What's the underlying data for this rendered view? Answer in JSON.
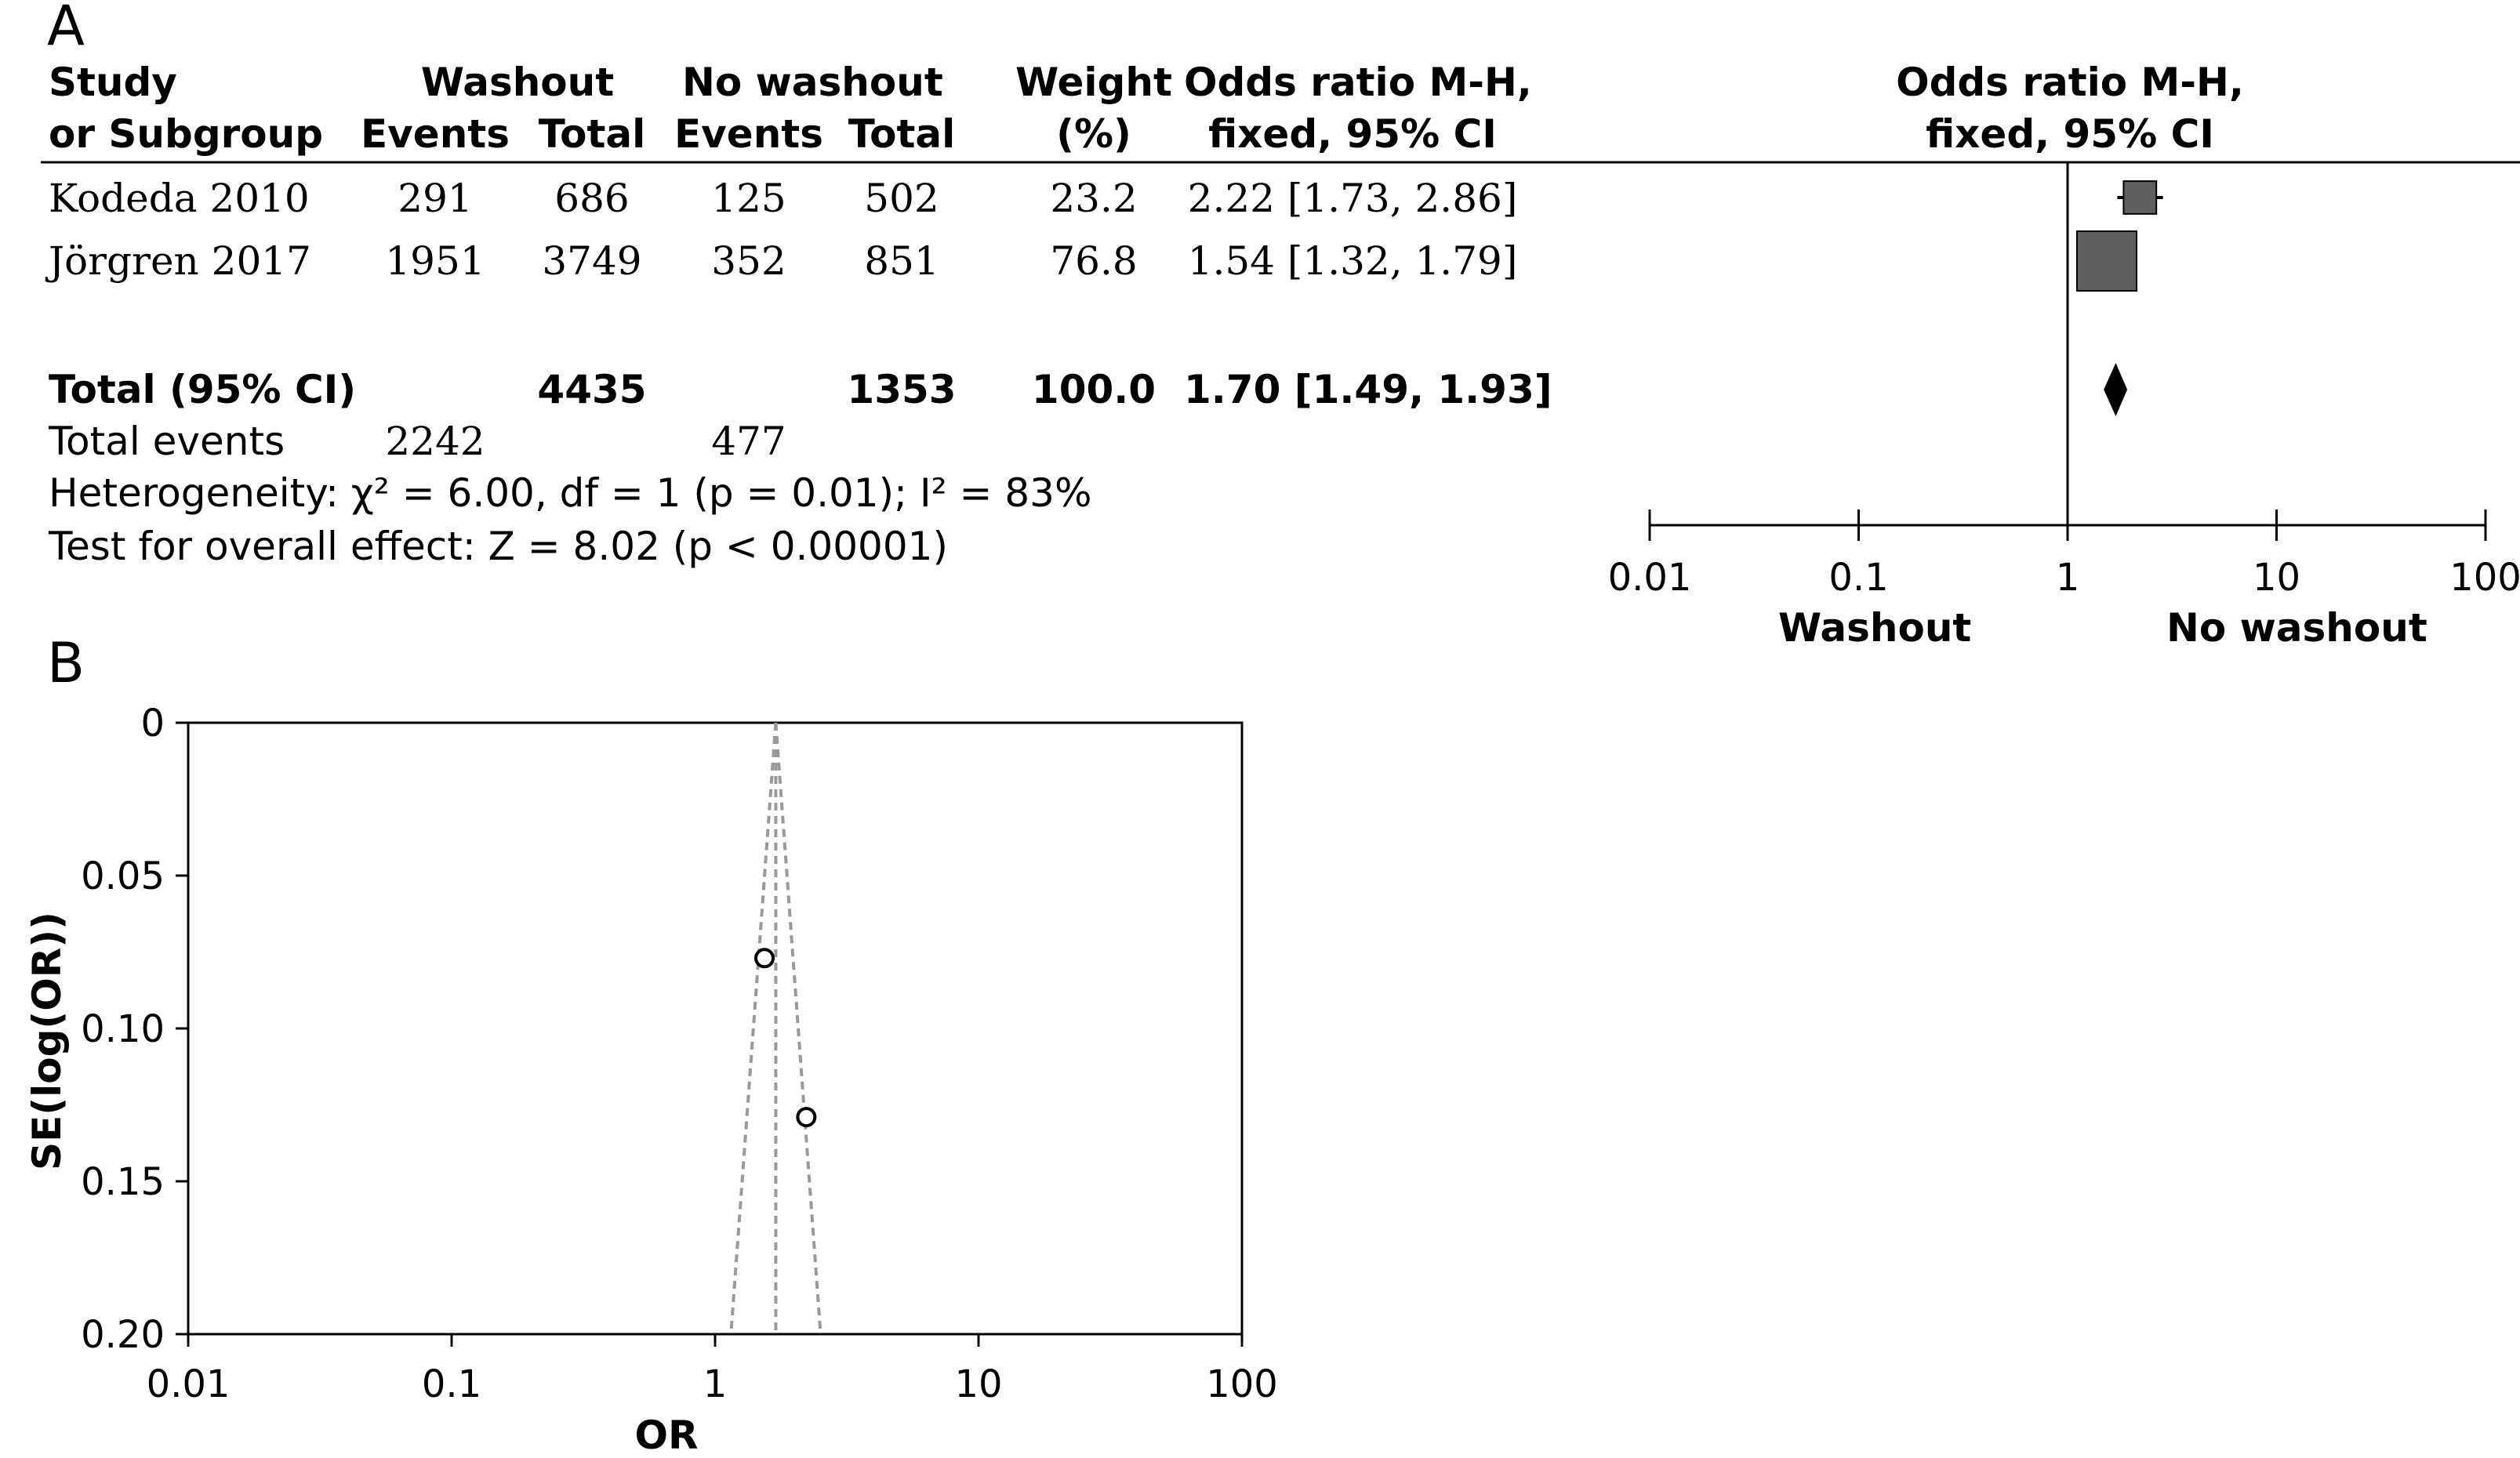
{
  "panels": {
    "a_label": "A",
    "b_label": "B"
  },
  "table": {
    "headers": {
      "study_1": "Study",
      "study_2": "or Subgroup",
      "washout": "Washout",
      "no_washout": "No washout",
      "events_1": "Events",
      "total_1": "Total",
      "events_2": "Events",
      "total_2": "Total",
      "weight_1": "Weight",
      "weight_2": "(%)",
      "or_1": "Odds ratio M-H,",
      "or_2": "fixed, 95% CI",
      "plot_1": "Odds ratio M-H,",
      "plot_2": "fixed, 95% CI"
    },
    "rows": [
      {
        "study": "Kodeda 2010",
        "w_events": "291",
        "w_total": "686",
        "nw_events": "125",
        "nw_total": "502",
        "weight": "23.2",
        "ci": "2.22 [1.73, 2.86]"
      },
      {
        "study": "Jörgren 2017",
        "w_events": "1951",
        "w_total": "3749",
        "nw_events": "352",
        "nw_total": "851",
        "weight": "76.8",
        "ci": "1.54 [1.32, 1.79]"
      }
    ],
    "total": {
      "label": "Total (95% CI)",
      "w_total": "4435",
      "nw_total": "1353",
      "weight": "100.0",
      "ci": "1.70 [1.49, 1.93]"
    },
    "total_events": {
      "label": "Total events",
      "washout": "2242",
      "no_washout": "477"
    },
    "heterogeneity": "Heterogeneity: χ² = 6.00, df = 1 (p = 0.01); I² = 83%",
    "overall_effect": "Test for overall effect: Z = 8.02 (p < 0.00001)"
  },
  "chart_data": [
    {
      "type": "scatter",
      "title": "Odds ratio M-H, fixed, 95% CI",
      "x_scale": "log",
      "xlim": [
        0.01,
        100
      ],
      "x_ticks": [
        "0.01",
        "0.1",
        "1",
        "10",
        "100"
      ],
      "x_label_left": "Washout",
      "x_label_right": "No washout",
      "reference_line": 1,
      "studies": [
        {
          "name": "Kodeda 2010",
          "or": 2.22,
          "ci_low": 1.73,
          "ci_high": 2.86,
          "weight": 23.2
        },
        {
          "name": "Jörgren 2017",
          "or": 1.54,
          "ci_low": 1.32,
          "ci_high": 1.79,
          "weight": 76.8
        }
      ],
      "pooled": {
        "or": 1.7,
        "ci_low": 1.49,
        "ci_high": 1.93
      },
      "colors": {
        "box": "#5f5f5f",
        "diamond": "#000000"
      }
    },
    {
      "type": "scatter",
      "xlabel": "OR",
      "ylabel": "SE(log(OR))",
      "x_scale": "log",
      "xlim": [
        0.01,
        100
      ],
      "ylim": [
        0,
        0.2
      ],
      "y_reversed": true,
      "x_ticks": [
        "0.01",
        "0.1",
        "1",
        "10",
        "100"
      ],
      "y_ticks": [
        "0",
        "0.05",
        "0.10",
        "0.15",
        "0.20"
      ],
      "points": [
        {
          "x": 1.54,
          "y": 0.077
        },
        {
          "x": 2.22,
          "y": 0.129
        }
      ],
      "pooled_or": 1.7,
      "funnel_color": "#999999"
    }
  ]
}
